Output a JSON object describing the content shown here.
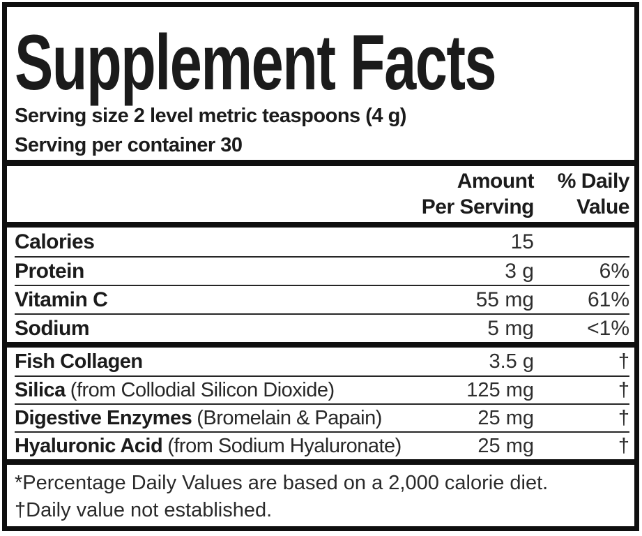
{
  "label": {
    "title": "Supplement Facts",
    "serving_size": "Serving size 2 level metric teaspoons (4 g)",
    "servings_per_container": "Serving per container 30",
    "columns": {
      "amount_line1": "Amount",
      "amount_line2": "Per Serving",
      "dv_line1": "% Daily",
      "dv_line2": "Value"
    },
    "nutrients": [
      {
        "name": "Calories",
        "detail": "",
        "amount": "15",
        "dv": ""
      },
      {
        "name": "Protein",
        "detail": "",
        "amount": "3 g",
        "dv": "6%"
      },
      {
        "name": "Vitamin C",
        "detail": "",
        "amount": "55 mg",
        "dv": "61%"
      },
      {
        "name": "Sodium",
        "detail": "",
        "amount": "5 mg",
        "dv": "<1%"
      }
    ],
    "ingredients": [
      {
        "name": "Fish Collagen",
        "detail": "",
        "amount": "3.5 g",
        "dv": "†"
      },
      {
        "name": "Silica",
        "detail": "(from Collodial Silicon Dioxide)",
        "amount": "125 mg",
        "dv": "†"
      },
      {
        "name": "Digestive Enzymes",
        "detail": "(Bromelain & Papain)",
        "amount": "25 mg",
        "dv": "†"
      },
      {
        "name": "Hyaluronic Acid",
        "detail": "(from Sodium Hyaluronate)",
        "amount": "25 mg",
        "dv": "†"
      }
    ],
    "footnotes": [
      "*Percentage Daily Values are based on a 2,000 calorie diet.",
      "†Daily value not established."
    ],
    "colors": {
      "text": "#1b1b1b",
      "border": "#0e0e0e",
      "background": "#ffffff"
    }
  }
}
